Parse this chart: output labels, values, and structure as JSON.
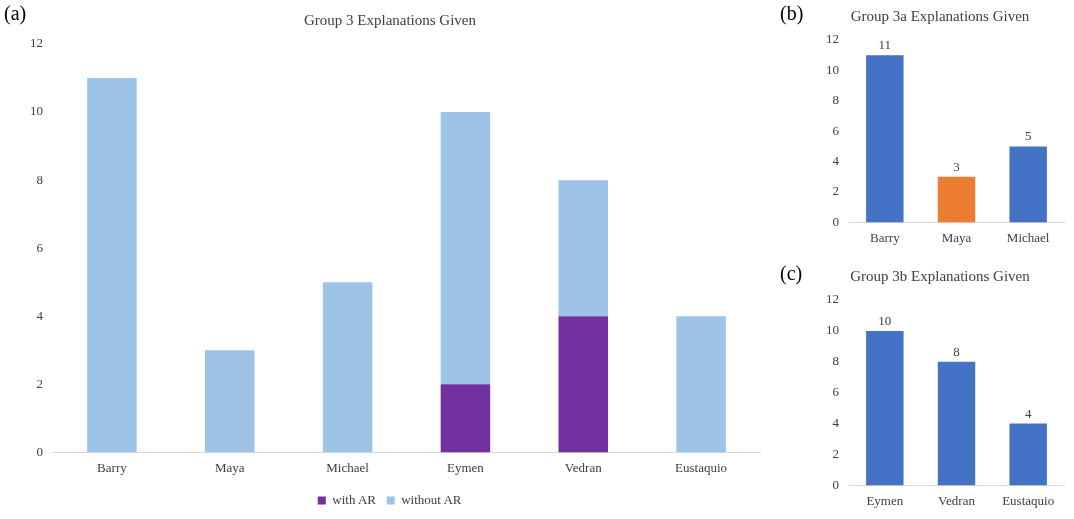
{
  "chart_data": [
    {
      "type": "bar",
      "title": "Group 3 Explanations Given",
      "annotations": [
        "(a)"
      ],
      "categories": [
        "Barry",
        "Maya",
        "Michael",
        "Eymen",
        "Vedran",
        "Eustaquio"
      ],
      "stacked": true,
      "series": [
        {
          "name": "with AR",
          "color": "#7030a0",
          "values": [
            0,
            0,
            0,
            2,
            4,
            0
          ]
        },
        {
          "name": "without AR",
          "color": "#9dc3e6",
          "values": [
            11,
            3,
            5,
            8,
            4,
            4
          ]
        }
      ],
      "ylim": [
        0,
        12
      ],
      "yticks": [
        0,
        2,
        4,
        6,
        8,
        10,
        12
      ],
      "grid": false,
      "legend": "bottom"
    },
    {
      "type": "bar",
      "title": "Group 3a Explanations Given",
      "annotations": [
        "(b)"
      ],
      "categories": [
        "Barry",
        "Maya",
        "Michael"
      ],
      "values": [
        11,
        3,
        5
      ],
      "colors": [
        "#4472c4",
        "#ed7d31",
        "#4472c4"
      ],
      "ylim": [
        0,
        12
      ],
      "yticks": [
        0,
        2,
        4,
        6,
        8,
        10,
        12
      ],
      "grid": false,
      "data_labels": true
    },
    {
      "type": "bar",
      "title": "Group 3b Explanations Given",
      "annotations": [
        "(c)"
      ],
      "categories": [
        "Eymen",
        "Vedran",
        "Eustaquio"
      ],
      "values": [
        10,
        8,
        4
      ],
      "color": "#4472c4",
      "ylim": [
        0,
        12
      ],
      "yticks": [
        0,
        2,
        4,
        6,
        8,
        10,
        12
      ],
      "grid": false,
      "data_labels": true
    }
  ]
}
